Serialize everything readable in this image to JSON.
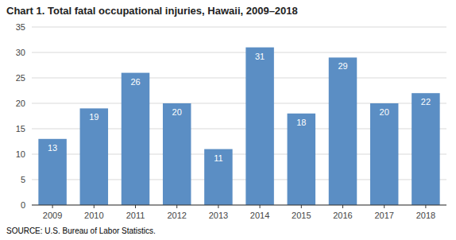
{
  "chart_data": {
    "type": "bar",
    "title": "Chart 1. Total fatal occupational injuries, Hawaii, 2009–2018",
    "categories": [
      "2009",
      "2010",
      "2011",
      "2012",
      "2013",
      "2014",
      "2015",
      "2016",
      "2017",
      "2018"
    ],
    "values": [
      13,
      19,
      26,
      20,
      11,
      31,
      18,
      29,
      20,
      22
    ],
    "color": "#5b8ec4",
    "ylim": [
      0,
      35
    ],
    "yticks": [
      0,
      5,
      10,
      15,
      20,
      25,
      30,
      35
    ],
    "grid": true,
    "data_labels": true,
    "annotations": [
      "SOURCE: U.S. Bureau of Labor Statistics."
    ]
  }
}
